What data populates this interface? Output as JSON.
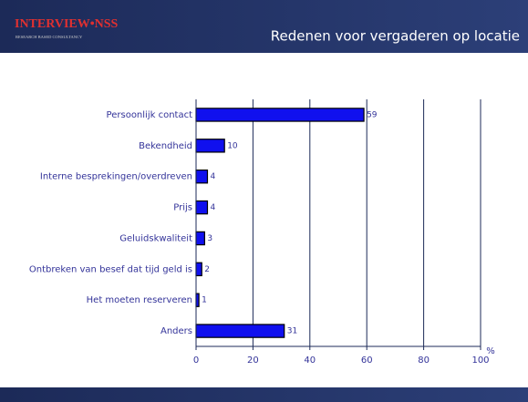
{
  "logo": {
    "name": "INTERVIEW•NSS",
    "tagline": "RESEARCH BASED CONSULTANCY"
  },
  "chart_data": {
    "type": "bar",
    "orientation": "horizontal",
    "title": "Redenen voor vergaderen op locatie",
    "xlabel": "%",
    "categories": [
      "Persoonlijk contact",
      "Bekendheid",
      "Interne besprekingen/overdreven",
      "Prijs",
      "Geluidskwaliteit",
      "Ontbreken van besef dat tijd geld is",
      "Het moeten reserveren",
      "Anders"
    ],
    "values": [
      59,
      10,
      4,
      4,
      3,
      2,
      1,
      31
    ],
    "color": "#1010ee",
    "xlim": [
      0,
      100
    ],
    "xticks": [
      0,
      20,
      40,
      60,
      80,
      100
    ],
    "grid": true
  }
}
